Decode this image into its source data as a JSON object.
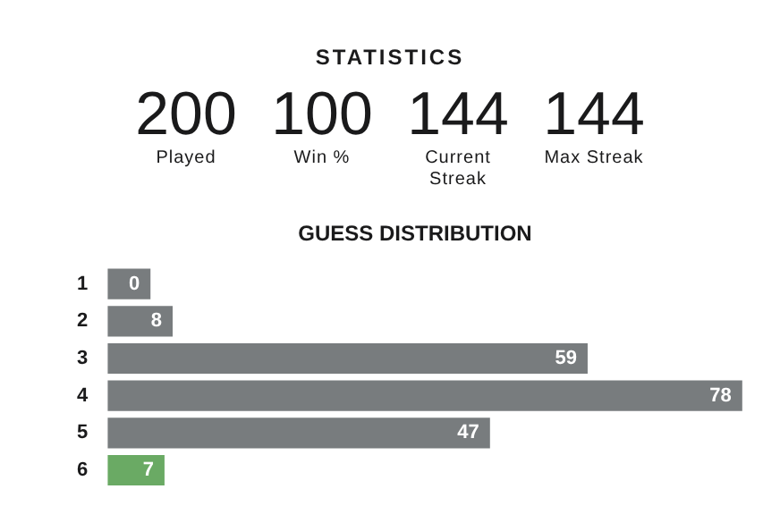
{
  "chart_data": [
    {
      "type": "other",
      "title": "STATISTICS",
      "annotations": [
        "200",
        "Played",
        "100",
        "Win %",
        "144",
        "Current Streak",
        "144",
        "Max Streak"
      ]
    },
    {
      "type": "bar",
      "orientation": "horizontal",
      "title": "GUESS DISTRIBUTION",
      "categories": [
        "1",
        "2",
        "3",
        "4",
        "5",
        "6"
      ],
      "values": [
        0,
        8,
        59,
        78,
        47,
        7
      ],
      "colors": [
        "#787c7e",
        "#787c7e",
        "#787c7e",
        "#787c7e",
        "#787c7e",
        "#6aaa64"
      ],
      "data_labels": true,
      "grid": false,
      "legend": false,
      "tick_labels": "y"
    }
  ]
}
